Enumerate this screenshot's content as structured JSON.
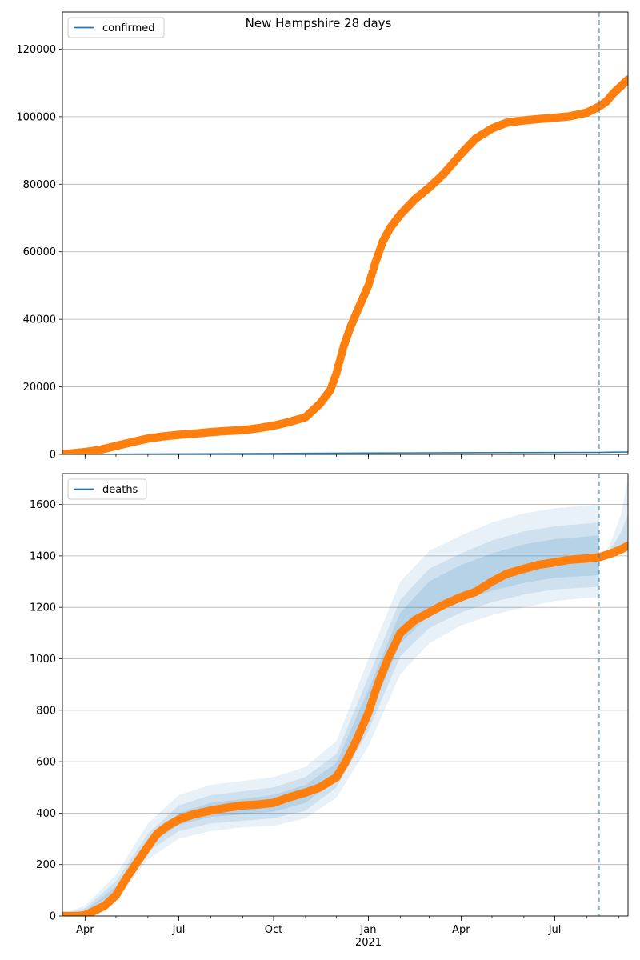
{
  "title": "New Hampshire 28 days",
  "colors": {
    "observed": "#ff7f0e",
    "model": "#1f77b4",
    "band": "#a9c8e6",
    "grid": "#b0b0b0"
  },
  "x_axis": {
    "start": "2020-03-10",
    "end": "2021-09-10",
    "tick_labels": [
      {
        "date": "2020-04-01",
        "label": "Apr"
      },
      {
        "date": "2020-07-01",
        "label": "Jul"
      },
      {
        "date": "2020-10-01",
        "label": "Oct"
      },
      {
        "date": "2021-01-01",
        "label": "Jan"
      },
      {
        "date": "2021-04-01",
        "label": "Apr"
      },
      {
        "date": "2021-07-01",
        "label": "Jul"
      }
    ],
    "year_label": "2021",
    "forecast_start": "2021-08-13"
  },
  "chart_data": [
    {
      "type": "line",
      "legend": "confirmed",
      "legend_position": "top-left",
      "ylim": [
        0,
        131000
      ],
      "yticks": [
        0,
        20000,
        40000,
        60000,
        80000,
        100000,
        120000
      ],
      "grid": true,
      "observed": [
        [
          "2020-03-10",
          0
        ],
        [
          "2020-04-01",
          700
        ],
        [
          "2020-04-15",
          1300
        ],
        [
          "2020-05-01",
          2500
        ],
        [
          "2020-05-15",
          3500
        ],
        [
          "2020-06-01",
          4700
        ],
        [
          "2020-06-15",
          5300
        ],
        [
          "2020-07-01",
          5800
        ],
        [
          "2020-07-15",
          6100
        ],
        [
          "2020-08-01",
          6600
        ],
        [
          "2020-08-15",
          6900
        ],
        [
          "2020-09-01",
          7200
        ],
        [
          "2020-09-15",
          7700
        ],
        [
          "2020-10-01",
          8500
        ],
        [
          "2020-10-15",
          9500
        ],
        [
          "2020-11-01",
          11000
        ],
        [
          "2020-11-15",
          15000
        ],
        [
          "2020-11-25",
          19000
        ],
        [
          "2020-12-01",
          24000
        ],
        [
          "2020-12-08",
          32000
        ],
        [
          "2020-12-15",
          38000
        ],
        [
          "2020-12-22",
          43000
        ],
        [
          "2021-01-01",
          50000
        ],
        [
          "2021-01-08",
          57000
        ],
        [
          "2021-01-15",
          63000
        ],
        [
          "2021-01-22",
          67000
        ],
        [
          "2021-02-01",
          71000
        ],
        [
          "2021-02-15",
          75500
        ],
        [
          "2021-03-01",
          79000
        ],
        [
          "2021-03-15",
          83000
        ],
        [
          "2021-04-01",
          89000
        ],
        [
          "2021-04-15",
          93500
        ],
        [
          "2021-05-01",
          96500
        ],
        [
          "2021-05-15",
          98200
        ],
        [
          "2021-06-01",
          98900
        ],
        [
          "2021-06-15",
          99300
        ],
        [
          "2021-07-01",
          99700
        ],
        [
          "2021-07-15",
          100100
        ],
        [
          "2021-08-01",
          101200
        ],
        [
          "2021-08-13",
          103000
        ],
        [
          "2021-08-20",
          104500
        ],
        [
          "2021-08-27",
          107000
        ],
        [
          "2021-09-03",
          109000
        ],
        [
          "2021-09-10",
          111000
        ]
      ],
      "model": [
        [
          "2020-03-10",
          0
        ],
        [
          "2020-06-01",
          100
        ],
        [
          "2020-10-01",
          250
        ],
        [
          "2021-01-01",
          400
        ],
        [
          "2021-04-01",
          500
        ],
        [
          "2021-08-13",
          600
        ],
        [
          "2021-09-10",
          700
        ]
      ]
    },
    {
      "type": "line",
      "legend": "deaths",
      "legend_position": "top-left",
      "ylim": [
        0,
        1720
      ],
      "yticks": [
        0,
        200,
        400,
        600,
        800,
        1000,
        1200,
        1400,
        1600
      ],
      "grid": true,
      "observed": [
        [
          "2020-03-10",
          0
        ],
        [
          "2020-03-25",
          0
        ],
        [
          "2020-04-01",
          3
        ],
        [
          "2020-04-10",
          20
        ],
        [
          "2020-04-20",
          40
        ],
        [
          "2020-05-01",
          80
        ],
        [
          "2020-05-10",
          140
        ],
        [
          "2020-05-20",
          200
        ],
        [
          "2020-06-01",
          270
        ],
        [
          "2020-06-10",
          320
        ],
        [
          "2020-06-20",
          350
        ],
        [
          "2020-07-01",
          375
        ],
        [
          "2020-07-15",
          395
        ],
        [
          "2020-08-01",
          410
        ],
        [
          "2020-08-15",
          420
        ],
        [
          "2020-09-01",
          430
        ],
        [
          "2020-09-15",
          433
        ],
        [
          "2020-10-01",
          440
        ],
        [
          "2020-10-15",
          460
        ],
        [
          "2020-11-01",
          480
        ],
        [
          "2020-11-15",
          500
        ],
        [
          "2020-12-01",
          540
        ],
        [
          "2020-12-10",
          600
        ],
        [
          "2020-12-20",
          680
        ],
        [
          "2021-01-01",
          790
        ],
        [
          "2021-01-10",
          900
        ],
        [
          "2021-01-20",
          1000
        ],
        [
          "2021-02-01",
          1100
        ],
        [
          "2021-02-15",
          1150
        ],
        [
          "2021-03-01",
          1180
        ],
        [
          "2021-03-15",
          1210
        ],
        [
          "2021-04-01",
          1240
        ],
        [
          "2021-04-15",
          1260
        ],
        [
          "2021-05-01",
          1300
        ],
        [
          "2021-05-15",
          1330
        ],
        [
          "2021-06-01",
          1350
        ],
        [
          "2021-06-15",
          1365
        ],
        [
          "2021-07-01",
          1375
        ],
        [
          "2021-07-15",
          1385
        ],
        [
          "2021-08-01",
          1390
        ],
        [
          "2021-08-13",
          1395
        ],
        [
          "2021-08-25",
          1410
        ],
        [
          "2021-09-03",
          1425
        ],
        [
          "2021-09-10",
          1440
        ]
      ],
      "band_outer": {
        "x": [
          "2020-03-10",
          "2020-04-01",
          "2020-05-01",
          "2020-06-01",
          "2020-07-01",
          "2020-08-01",
          "2020-09-01",
          "2020-10-01",
          "2020-11-01",
          "2020-12-01",
          "2021-01-01",
          "2021-02-01",
          "2021-03-01",
          "2021-04-01",
          "2021-05-01",
          "2021-06-01",
          "2021-07-01",
          "2021-08-13"
        ],
        "upper": [
          10,
          40,
          160,
          360,
          470,
          510,
          525,
          540,
          580,
          680,
          1000,
          1300,
          1420,
          1480,
          1530,
          1565,
          1585,
          1600
        ],
        "lower": [
          0,
          5,
          60,
          220,
          300,
          330,
          345,
          350,
          380,
          460,
          660,
          940,
          1060,
          1130,
          1170,
          1200,
          1225,
          1240
        ]
      },
      "band_mid": {
        "x": [
          "2020-03-10",
          "2020-04-01",
          "2020-05-01",
          "2020-06-01",
          "2020-07-01",
          "2020-08-01",
          "2020-09-01",
          "2020-10-01",
          "2020-11-01",
          "2020-12-01",
          "2021-01-01",
          "2021-02-01",
          "2021-03-01",
          "2021-04-01",
          "2021-05-01",
          "2021-06-01",
          "2021-07-01",
          "2021-08-13"
        ],
        "upper": [
          6,
          30,
          135,
          320,
          430,
          470,
          485,
          500,
          540,
          630,
          930,
          1230,
          1350,
          1410,
          1460,
          1495,
          1515,
          1530
        ],
        "lower": [
          0,
          10,
          80,
          250,
          330,
          360,
          370,
          380,
          410,
          500,
          720,
          1010,
          1120,
          1180,
          1220,
          1250,
          1270,
          1280
        ]
      },
      "band_inner": {
        "x": [
          "2020-03-10",
          "2020-04-01",
          "2020-05-01",
          "2020-06-01",
          "2020-07-01",
          "2020-08-01",
          "2020-09-01",
          "2020-10-01",
          "2020-11-01",
          "2020-12-01",
          "2021-01-01",
          "2021-02-01",
          "2021-03-01",
          "2021-04-01",
          "2021-05-01",
          "2021-06-01",
          "2021-07-01",
          "2021-08-13"
        ],
        "upper": [
          3,
          20,
          115,
          295,
          400,
          440,
          455,
          470,
          510,
          595,
          880,
          1180,
          1300,
          1365,
          1410,
          1445,
          1465,
          1480
        ],
        "lower": [
          0,
          12,
          95,
          275,
          355,
          385,
          395,
          405,
          440,
          530,
          770,
          1060,
          1170,
          1225,
          1265,
          1295,
          1315,
          1325
        ]
      },
      "forecast_outer": {
        "x": [
          "2021-08-13",
          "2021-08-20",
          "2021-08-27",
          "2021-09-03",
          "2021-09-10"
        ],
        "upper": [
          1395,
          1420,
          1480,
          1560,
          1700
        ],
        "lower": [
          1395,
          1400,
          1405,
          1410,
          1415
        ]
      },
      "forecast_inner": {
        "x": [
          "2021-08-13",
          "2021-08-20",
          "2021-08-27",
          "2021-09-03",
          "2021-09-10"
        ],
        "upper": [
          1395,
          1412,
          1445,
          1490,
          1560
        ],
        "lower": [
          1395,
          1402,
          1412,
          1422,
          1430
        ]
      }
    }
  ]
}
